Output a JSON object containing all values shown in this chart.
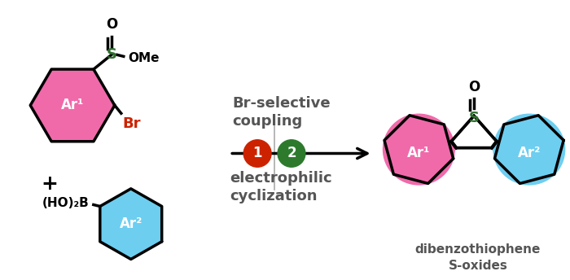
{
  "bg_color": "#ffffff",
  "pink_color": "#f06aaa",
  "cyan_color": "#6dcef0",
  "red_circle_color": "#cc2200",
  "green_circle_color": "#2d7a2d",
  "sulfur_color": "#2d6e2d",
  "br_color": "#cc2200",
  "text_dark": "#555555",
  "dbt_label": "dibenzothiophene\nS-oxides",
  "br_label": "Br",
  "ome_label": "OMe",
  "plus_label": "+",
  "ho2b_label": "(HO)₂B",
  "ar1_label": "Ar¹",
  "ar2_label": "Ar²",
  "step1_label": "1",
  "step2_label": "2",
  "coupling_text": "Br-selective\ncoupling",
  "cyclization_text": "electrophilic\ncyclization",
  "s_label": "S",
  "o_label": "O"
}
